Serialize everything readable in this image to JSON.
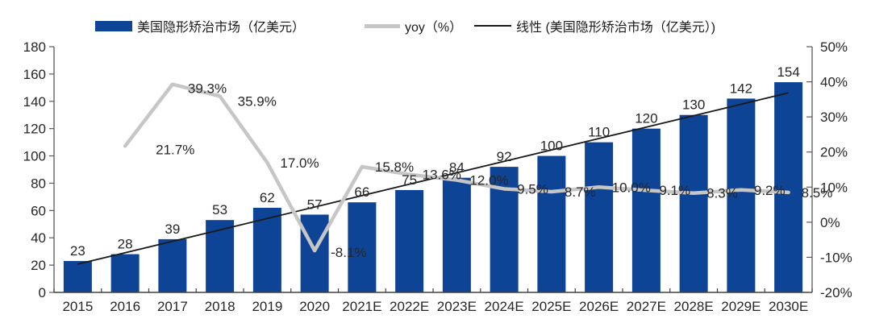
{
  "legend": {
    "items": [
      {
        "label": "美国隐形矫治市场（亿美元）",
        "swatch": "bar",
        "color": "#0E4496"
      },
      {
        "label": "yoy（%）",
        "swatch": "thick-line",
        "color": "#C6C6C6"
      },
      {
        "label": "线性 (美国隐形矫治市场（亿美元）)",
        "swatch": "thin-line",
        "color": "#1A1A1A"
      }
    ]
  },
  "chart_data": {
    "type": "bar",
    "subtype": "bar-line-combo",
    "title": "",
    "categories": [
      "2015",
      "2016",
      "2017",
      "2018",
      "2019",
      "2020",
      "2021E",
      "2022E",
      "2023E",
      "2024E",
      "2025E",
      "2026E",
      "2027E",
      "2028E",
      "2029E",
      "2030E"
    ],
    "series": [
      {
        "name": "美国隐形矫治市场（亿美元）",
        "type": "bar",
        "axis": "left",
        "color": "#0E4496",
        "values": [
          23,
          28,
          39,
          53,
          62,
          57,
          66,
          75,
          84,
          92,
          100,
          110,
          120,
          130,
          142,
          154
        ]
      },
      {
        "name": "yoy（%）",
        "type": "line",
        "axis": "right",
        "color": "#C6C6C6",
        "values": [
          null,
          21.7,
          39.3,
          35.9,
          17.0,
          -8.1,
          15.8,
          13.6,
          12.0,
          9.5,
          8.7,
          10.0,
          9.1,
          8.3,
          9.2,
          8.5
        ],
        "point_labels": [
          "",
          "21.7%",
          "39.3%",
          "35.9%",
          "17.0%",
          "-8.1%",
          "15.8%",
          "13.6%",
          "12.0%",
          "9.5%",
          "8.7%",
          "10.0%",
          "9.1%",
          "8.3%",
          "9.2%",
          "8.5%"
        ]
      },
      {
        "name": "线性 (美国隐形矫治市场（亿美元）)",
        "type": "trendline",
        "axis": "left",
        "color": "#1A1A1A",
        "endpoints": [
          20.7,
          146.2
        ]
      }
    ],
    "left_axis": {
      "min": 0,
      "max": 180,
      "step": 20,
      "tick_labels": [
        "0",
        "20",
        "40",
        "60",
        "80",
        "100",
        "120",
        "140",
        "160",
        "180"
      ]
    },
    "right_axis": {
      "min": -20,
      "max": 50,
      "step": 10,
      "tick_labels": [
        "-20%",
        "-10%",
        "0%",
        "10%",
        "20%",
        "30%",
        "40%",
        "50%"
      ]
    },
    "grid": false,
    "legend_position": "top",
    "text_color": "#262626",
    "axis_color": "#595959"
  }
}
